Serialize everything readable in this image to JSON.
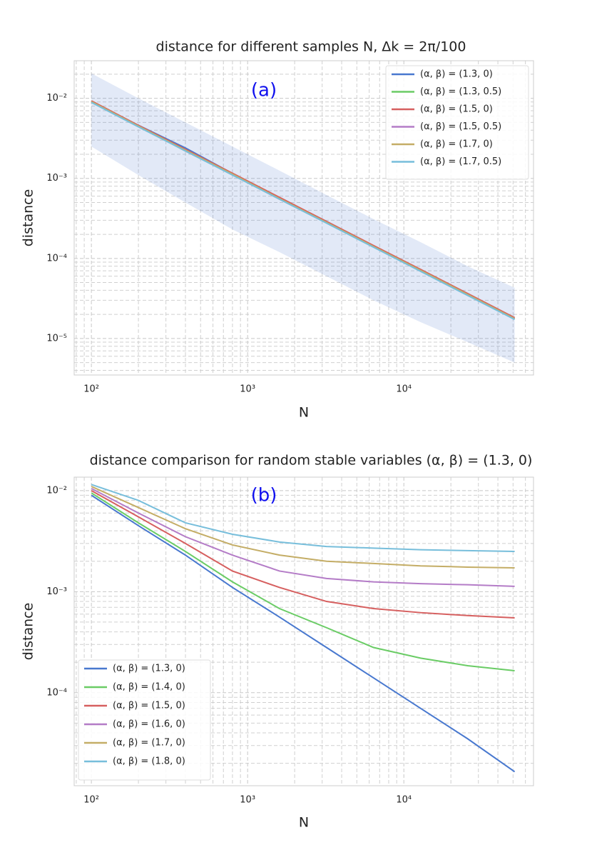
{
  "chart_data": [
    {
      "type": "line",
      "title": "distance for different samples N, Δk = 2π/100",
      "annotation": "(a)",
      "x_label": "N",
      "y_label": "distance",
      "log_x": true,
      "log_y": true,
      "grid": true,
      "legend": "upper right",
      "xlim": [
        77.6,
        67600
      ],
      "ylim": [
        3.5e-06,
        0.0295
      ],
      "xticks": [
        {
          "value": 100,
          "label": "10²"
        },
        {
          "value": 1000,
          "label": "10³"
        },
        {
          "value": 10000,
          "label": "10⁴"
        }
      ],
      "yticks": [
        {
          "value": 1e-05,
          "label": "10⁻⁵"
        },
        {
          "value": 0.0001,
          "label": "10⁻⁴"
        },
        {
          "value": 0.001,
          "label": "10⁻³"
        },
        {
          "value": 0.01,
          "label": "10⁻²"
        }
      ],
      "x": [
        100,
        200,
        400,
        800,
        1600,
        3200,
        6400,
        12800,
        25600,
        51200
      ],
      "band": {
        "color": "#4878cf",
        "upper": [
          0.0205,
          0.01,
          0.005,
          0.0025,
          0.00125,
          0.00062,
          0.00031,
          0.00016,
          8e-05,
          4.3e-05
        ],
        "lower": [
          0.0025,
          0.0011,
          0.0005,
          0.00023,
          0.00012,
          6e-05,
          3e-05,
          1.6e-05,
          9e-06,
          5e-06
        ]
      },
      "series": [
        {
          "name": "(α, β) = (1.3, 0)",
          "color": "#4878cf",
          "values": [
            0.0092,
            0.0046,
            0.0024,
            0.00115,
            0.00057,
            0.00029,
            0.000143,
            7.2e-05,
            3.6e-05,
            1.78e-05
          ]
        },
        {
          "name": "(α, β) = (1.3, 0.5)",
          "color": "#6acc65",
          "values": [
            0.0091,
            0.0045,
            0.0022,
            0.00112,
            0.00056,
            0.00028,
            0.00014,
            7e-05,
            3.5e-05,
            1.76e-05
          ]
        },
        {
          "name": "(α, β) = (1.5, 0)",
          "color": "#d65f5f",
          "values": [
            0.0093,
            0.0046,
            0.0023,
            0.00116,
            0.00058,
            0.00029,
            0.000145,
            7.3e-05,
            3.65e-05,
            1.82e-05
          ]
        },
        {
          "name": "(α, β) = (1.5, 0.5)",
          "color": "#b47cc7",
          "values": [
            0.009,
            0.0045,
            0.0022,
            0.00111,
            0.00055,
            0.000278,
            0.000139,
            7e-05,
            3.5e-05,
            1.75e-05
          ]
        },
        {
          "name": "(α, β) = (1.7, 0)",
          "color": "#c4ad66",
          "values": [
            0.0091,
            0.0045,
            0.00225,
            0.00113,
            0.00056,
            0.000282,
            0.000141,
            7.1e-05,
            3.55e-05,
            1.77e-05
          ]
        },
        {
          "name": "(α, β) = (1.7, 0.5)",
          "color": "#77bedb",
          "values": [
            0.0089,
            0.0044,
            0.0022,
            0.0011,
            0.00055,
            0.000276,
            0.000138,
            6.9e-05,
            3.45e-05,
            1.73e-05
          ]
        }
      ]
    },
    {
      "type": "line",
      "title": "distance comparison for random stable variables (α, β) = (1.3, 0)",
      "annotation": "(b)",
      "x_label": "N",
      "y_label": "distance",
      "log_x": true,
      "log_y": true,
      "grid": true,
      "legend": "lower left",
      "xlim": [
        77.6,
        67600
      ],
      "ylim": [
        1.2e-05,
        0.0136
      ],
      "xticks": [
        {
          "value": 100,
          "label": "10²"
        },
        {
          "value": 1000,
          "label": "10³"
        },
        {
          "value": 10000,
          "label": "10⁴"
        }
      ],
      "yticks": [
        {
          "value": 0.0001,
          "label": "10⁻⁴"
        },
        {
          "value": 0.001,
          "label": "10⁻³"
        },
        {
          "value": 0.01,
          "label": "10⁻²"
        }
      ],
      "x": [
        100,
        200,
        400,
        800,
        1600,
        3200,
        6400,
        12800,
        25600,
        51200
      ],
      "series": [
        {
          "name": "(α, β) = (1.3, 0)",
          "color": "#4878cf",
          "values": [
            0.009,
            0.0045,
            0.0023,
            0.0011,
            0.00056,
            0.00028,
            0.00014,
            7e-05,
            3.5e-05,
            1.65e-05
          ]
        },
        {
          "name": "(α, β) = (1.4, 0)",
          "color": "#6acc65",
          "values": [
            0.0095,
            0.0048,
            0.0025,
            0.00125,
            0.00068,
            0.00044,
            0.00028,
            0.00022,
            0.000185,
            0.000165
          ]
        },
        {
          "name": "(α, β) = (1.5, 0)",
          "color": "#d65f5f",
          "values": [
            0.01,
            0.0055,
            0.003,
            0.0016,
            0.0011,
            0.0008,
            0.00068,
            0.00062,
            0.00058,
            0.00055
          ]
        },
        {
          "name": "(α, β) = (1.6, 0)",
          "color": "#b47cc7",
          "values": [
            0.0105,
            0.006,
            0.0035,
            0.0023,
            0.0016,
            0.00135,
            0.00125,
            0.0012,
            0.00117,
            0.00113
          ]
        },
        {
          "name": "(α, β) = (1.7, 0)",
          "color": "#c4ad66",
          "values": [
            0.011,
            0.0068,
            0.0042,
            0.0029,
            0.0023,
            0.002,
            0.0019,
            0.0018,
            0.00175,
            0.00172
          ]
        },
        {
          "name": "(α, β) = (1.8, 0)",
          "color": "#77bedb",
          "values": [
            0.0115,
            0.008,
            0.0048,
            0.0037,
            0.0031,
            0.0028,
            0.0027,
            0.0026,
            0.00255,
            0.0025
          ]
        }
      ]
    }
  ]
}
